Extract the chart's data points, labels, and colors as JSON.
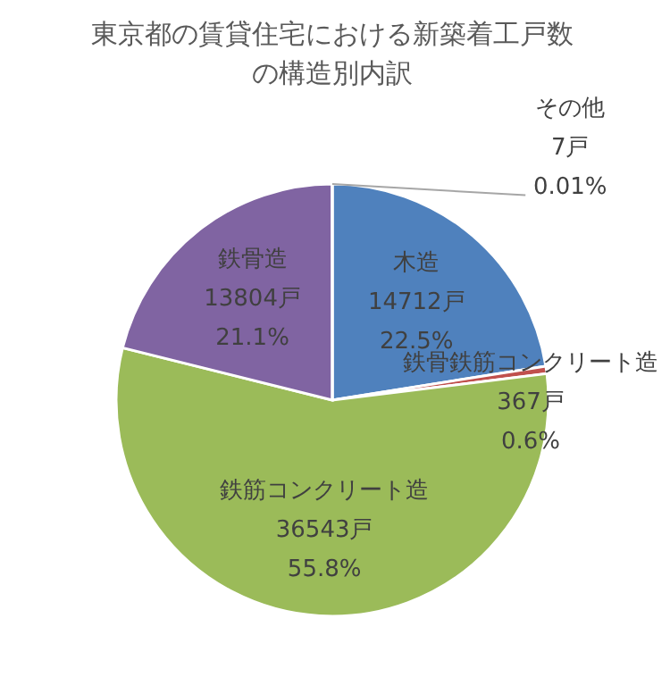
{
  "chart_data": {
    "type": "pie",
    "title": "東京都の賃貸住宅における新築着工戸数の構造別内訳",
    "categories": [
      "木造",
      "鉄骨鉄筋コンクリート造",
      "鉄筋コンクリート造",
      "鉄骨造",
      "その他"
    ],
    "values": [
      14712,
      367,
      36543,
      13804,
      7
    ],
    "colors": [
      "#4f81bd",
      "#c0504d",
      "#9bbb59",
      "#8064a2",
      "#4bacc6"
    ],
    "value_labels": [
      "14712戸\n22.5%",
      "367戸\n0.6%",
      "36543戸\n55.8%",
      "13804戸\n21.1%",
      "7戸\n0.01%"
    ]
  }
}
